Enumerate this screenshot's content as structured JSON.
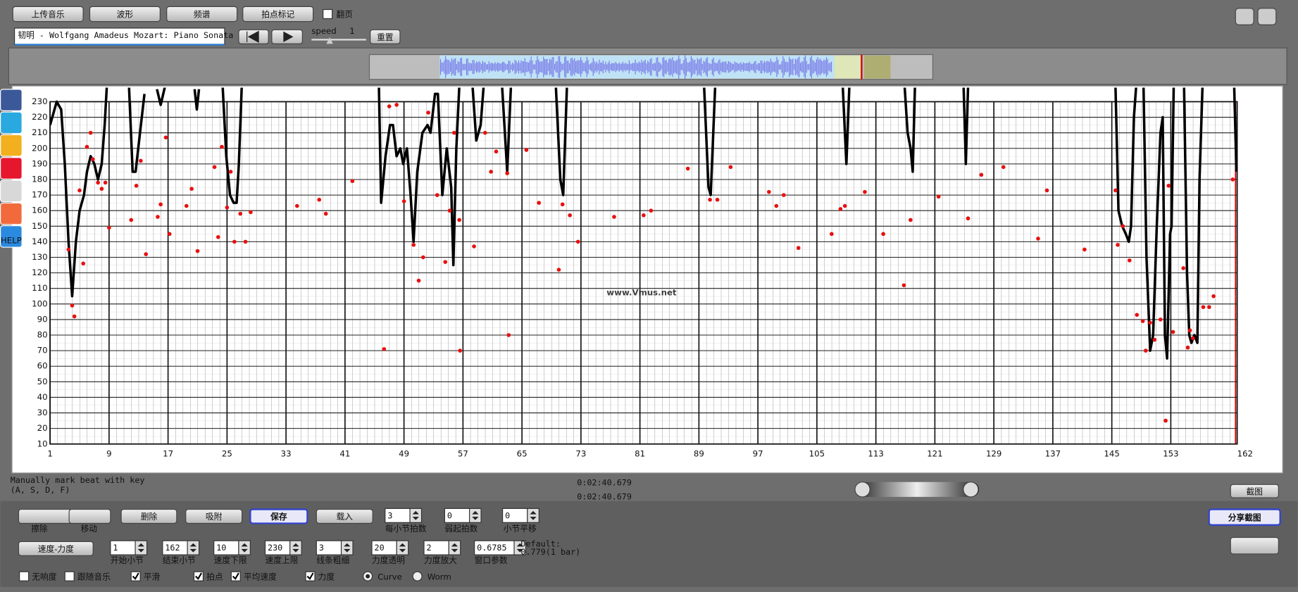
{
  "toolbar": {
    "buttons": [
      "上传音乐",
      "波形",
      "频谱",
      "拍点标记"
    ],
    "checkbox_label": "翻页",
    "track": "韧明 - Wolfgang Amadeus Mozart:  Piano Sonata No.",
    "speed_label": "speed",
    "speed_value": "1",
    "reset": "重置"
  },
  "chart_data": {
    "type": "line",
    "xlim": [
      1,
      162
    ],
    "ylim": [
      10,
      230
    ],
    "xticks": [
      1,
      9,
      17,
      25,
      33,
      41,
      49,
      57,
      65,
      73,
      81,
      89,
      97,
      105,
      113,
      121,
      129,
      137,
      145,
      153,
      162
    ],
    "yticks": [
      10,
      20,
      30,
      40,
      50,
      60,
      70,
      80,
      90,
      100,
      110,
      120,
      130,
      140,
      150,
      160,
      170,
      180,
      190,
      200,
      210,
      220,
      230
    ],
    "grid": true,
    "series": [
      {
        "type": "line",
        "color": "#000000",
        "x": [
          1.0,
          1.9,
          2.5,
          3.0,
          3.5,
          4.0,
          4.5,
          5.0,
          5.6,
          6.0,
          6.5,
          7.0,
          7.5,
          8.0,
          8.4,
          8.7,
          10,
          11.7,
          12.2,
          12.6,
          13.2,
          13.8,
          15,
          15.5,
          16.0,
          16.6,
          18,
          20.6,
          20.9,
          21.2,
          23,
          24.4,
          24.9,
          25.4,
          25.9,
          26.3,
          26.6,
          27.0,
          40,
          45.6,
          45.9,
          46.5,
          47.1,
          47.5,
          48.0,
          48.5,
          48.9,
          49.4,
          49.9,
          50.3,
          50.8,
          51.5,
          52.2,
          52.6,
          53.2,
          53.6,
          54.2,
          54.8,
          55.4,
          55.7,
          56.1,
          56.5,
          57.5,
          58.3,
          58.8,
          59.4,
          59.8,
          61,
          62.3,
          63.0,
          63.5,
          66,
          69.6,
          70.2,
          70.6,
          71.1,
          80,
          89.7,
          90.3,
          90.6,
          91.2,
          100,
          108.5,
          109.0,
          109.4,
          113,
          116.9,
          117.3,
          117.7,
          118.0,
          118.3,
          121,
          124.9,
          125.2,
          125.5,
          135,
          145.5,
          145.9,
          146.4,
          146.9,
          147.3,
          147.6,
          148.0,
          148.3,
          148.8,
          149.3,
          149.7,
          150.2,
          150.6,
          151.1,
          151.6,
          151.9,
          152.2,
          152.5,
          152.9,
          153.1,
          153.4,
          154.1,
          154.8,
          155.2,
          155.5,
          155.8,
          156.2,
          156.6,
          156.9,
          157.3,
          160,
          161.6,
          161.9
        ],
        "values": [
          215,
          230,
          225,
          190,
          140,
          105,
          140,
          160,
          170,
          185,
          195,
          190,
          180,
          190,
          215,
          240,
          null,
          240,
          185,
          185,
          210,
          235,
          null,
          238,
          228,
          240,
          null,
          238,
          225,
          238,
          null,
          240,
          195,
          170,
          165,
          165,
          190,
          240,
          null,
          240,
          165,
          195,
          215,
          215,
          195,
          200,
          190,
          200,
          170,
          140,
          185,
          210,
          215,
          210,
          235,
          235,
          170,
          200,
          175,
          125,
          200,
          240,
          null,
          240,
          205,
          215,
          240,
          null,
          240,
          185,
          240,
          null,
          240,
          180,
          170,
          240,
          null,
          240,
          175,
          170,
          240,
          null,
          240,
          190,
          240,
          null,
          240,
          210,
          200,
          185,
          240,
          null,
          240,
          190,
          240,
          null,
          240,
          160,
          150,
          145,
          140,
          150,
          220,
          240,
          null,
          240,
          130,
          70,
          80,
          150,
          210,
          220,
          80,
          65,
          145,
          150,
          240,
          null,
          240,
          120,
          80,
          75,
          80,
          75,
          180,
          240,
          null,
          240,
          185
        ]
      },
      {
        "type": "scatter",
        "color": "#e81010",
        "x": [
          3.5,
          4,
          4.3,
          5,
          5.5,
          6,
          6.5,
          6.8,
          7.5,
          8,
          8.5,
          9,
          12,
          12.7,
          13.3,
          14,
          15.6,
          16,
          16.7,
          17.2,
          19.5,
          20.2,
          21,
          23.3,
          23.8,
          24.3,
          25,
          25.5,
          26,
          26.8,
          27.5,
          28.2,
          34.5,
          37.5,
          38.4,
          42,
          46.3,
          47,
          48,
          49,
          50.3,
          51,
          51.6,
          52.3,
          53.5,
          54.6,
          55.2,
          55.8,
          56.6,
          56.5,
          58.5,
          60,
          60.8,
          61.5,
          63.2,
          63,
          65.6,
          67.3,
          70,
          70.5,
          71.5,
          72.6,
          77.5,
          81.5,
          82.5,
          87.5,
          90.5,
          91.5,
          93.3,
          98.5,
          99.5,
          100.5,
          102.5,
          107,
          108.2,
          108.8,
          111.5,
          114,
          116.8,
          117.7,
          121.5,
          125.5,
          127.3,
          130.3,
          135,
          136.2,
          141.3,
          145.5,
          145.8,
          146.5,
          147.4,
          148.4,
          149.2,
          149.6,
          150.2,
          150.8,
          151.6,
          152.3,
          152.7,
          153.3,
          154.7,
          155.3,
          155.6,
          156,
          157.4,
          158.2,
          158.8,
          161.4
        ],
        "values": [
          135,
          99,
          92,
          173,
          126,
          201,
          210,
          193,
          178,
          174,
          178,
          149,
          154,
          176,
          192,
          132,
          156,
          164,
          207,
          145,
          163,
          174,
          134,
          188,
          143,
          201,
          162,
          185,
          140,
          158,
          140,
          159,
          163,
          167,
          158,
          179,
          71,
          227,
          228,
          166,
          138,
          115,
          130,
          223,
          170,
          127,
          160,
          210,
          70,
          154,
          137,
          210,
          185,
          198,
          80,
          184,
          199,
          165,
          122,
          164,
          157,
          140,
          156,
          157,
          160,
          187,
          167,
          167,
          188,
          172,
          163,
          170,
          136,
          145,
          161,
          163,
          172,
          145,
          112,
          154,
          169,
          155,
          183,
          188,
          142,
          173,
          135,
          173,
          138,
          150,
          128,
          93,
          89,
          70,
          88,
          77,
          90,
          25,
          176,
          82,
          123,
          72,
          83,
          78,
          98,
          98,
          105,
          180
        ]
      }
    ]
  },
  "watermark": "www.Vmus.net",
  "status": {
    "hint": [
      "Manually mark beat with key",
      "(A, S, D, F)"
    ],
    "times": [
      "0:02:40.679",
      "0:02:40.679"
    ],
    "screenshot": "截图"
  },
  "controls": {
    "tools": [
      "擦除",
      "移动"
    ],
    "buttons": [
      "删除",
      "吸附",
      "保存",
      "载入"
    ],
    "spinners": [
      {
        "value": "3",
        "label": "每小节拍数"
      },
      {
        "value": "0",
        "label": "弱起拍数"
      },
      {
        "value": "0",
        "label": "小节平移"
      }
    ],
    "share": "分享截图",
    "mode": "速度-力度",
    "spinners2": [
      {
        "value": "1",
        "label": "开始小节"
      },
      {
        "value": "162",
        "label": "结束小节"
      },
      {
        "value": "10",
        "label": "速度下限"
      },
      {
        "value": "230",
        "label": "速度上限"
      },
      {
        "value": "3",
        "label": "线条粗细"
      },
      {
        "value": "20",
        "label": "力度透明"
      },
      {
        "value": "2",
        "label": "力度放大"
      },
      {
        "value": "0.6785",
        "label": "窗口参数"
      }
    ],
    "default": [
      "Default:",
      "0.779(1 bar)"
    ],
    "checkboxes": [
      {
        "label": "无响度",
        "checked": false
      },
      {
        "label": "跟随音乐",
        "checked": false
      },
      {
        "label": "平滑",
        "checked": true
      },
      {
        "label": "拍点",
        "checked": true
      },
      {
        "label": "平均速度",
        "checked": true
      },
      {
        "label": "力度",
        "checked": true
      }
    ],
    "radios": [
      {
        "label": "Curve",
        "checked": true
      },
      {
        "label": "Worm",
        "checked": false
      }
    ]
  },
  "sidebar": {
    "help": "HELP"
  }
}
